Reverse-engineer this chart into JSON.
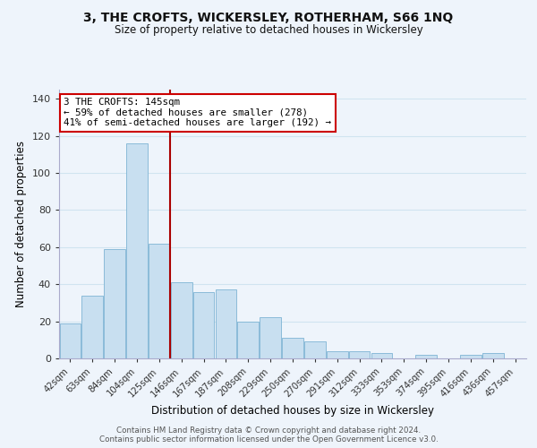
{
  "title": "3, THE CROFTS, WICKERSLEY, ROTHERHAM, S66 1NQ",
  "subtitle": "Size of property relative to detached houses in Wickersley",
  "xlabel": "Distribution of detached houses by size in Wickersley",
  "ylabel": "Number of detached properties",
  "bar_labels": [
    "42sqm",
    "63sqm",
    "84sqm",
    "104sqm",
    "125sqm",
    "146sqm",
    "167sqm",
    "187sqm",
    "208sqm",
    "229sqm",
    "250sqm",
    "270sqm",
    "291sqm",
    "312sqm",
    "333sqm",
    "353sqm",
    "374sqm",
    "395sqm",
    "416sqm",
    "436sqm",
    "457sqm"
  ],
  "bar_values": [
    19,
    34,
    59,
    116,
    62,
    41,
    36,
    37,
    20,
    22,
    11,
    9,
    4,
    4,
    3,
    0,
    2,
    0,
    2,
    3,
    0
  ],
  "bar_color": "#c8dff0",
  "bar_edge_color": "#7eb4d4",
  "grid_color": "#d0e4f0",
  "vline_x_index": 5,
  "vline_color": "#aa0000",
  "annotation_text": "3 THE CROFTS: 145sqm\n← 59% of detached houses are smaller (278)\n41% of semi-detached houses are larger (192) →",
  "annotation_box_facecolor": "#ffffff",
  "annotation_box_edgecolor": "#cc0000",
  "ylim": [
    0,
    145
  ],
  "yticks": [
    0,
    20,
    40,
    60,
    80,
    100,
    120,
    140
  ],
  "footer_line1": "Contains HM Land Registry data © Crown copyright and database right 2024.",
  "footer_line2": "Contains public sector information licensed under the Open Government Licence v3.0.",
  "background_color": "#eef4fb"
}
